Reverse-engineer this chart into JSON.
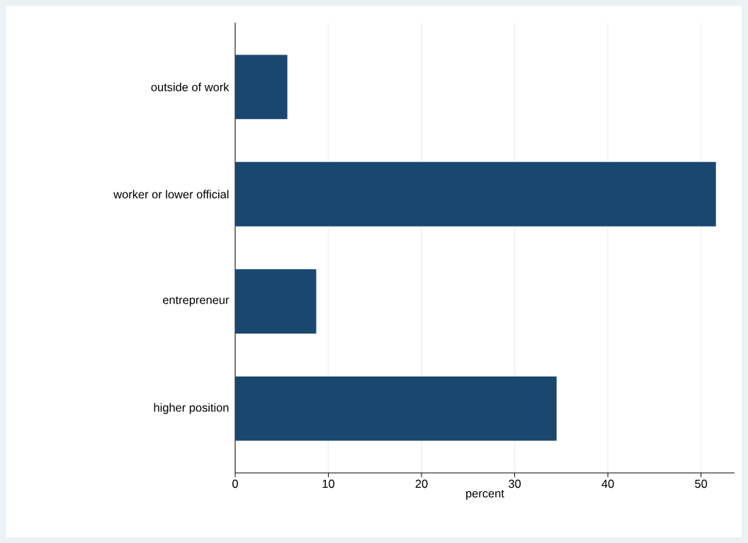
{
  "chart_data": {
    "type": "bar",
    "orientation": "horizontal",
    "categories": [
      "outside of work",
      "worker or lower official",
      "entrepreneur",
      "higher position"
    ],
    "values": [
      5.6,
      51.6,
      8.7,
      34.5
    ],
    "color": "#1a476f",
    "xlabel": "percent",
    "xlim": [
      0,
      53.6
    ],
    "xticks": [
      0,
      10,
      20,
      30,
      40,
      50
    ],
    "grid": "x"
  }
}
